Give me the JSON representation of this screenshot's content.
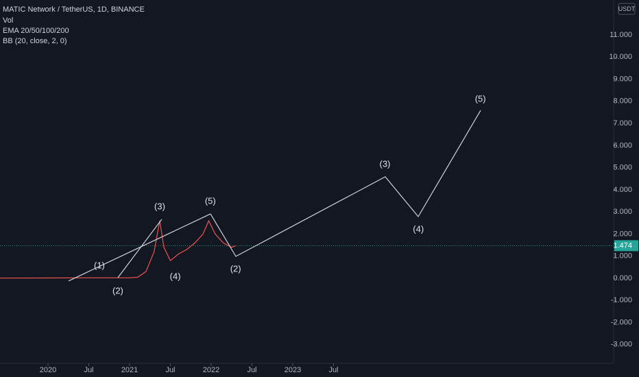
{
  "chart_data": {
    "type": "line",
    "title": "MATIC Network / TetherUS, 1D, BINANCE",
    "indicators": [
      "Vol",
      "EMA 20/50/100/200",
      "BB (20, close, 2, 0)"
    ],
    "y_unit": "USDT",
    "current_price": {
      "value": 1.474,
      "label": "1.474"
    },
    "xlim": [
      2019.412,
      2026.933
    ],
    "ylim": [
      -3.843,
      12.581
    ],
    "xticks": [
      {
        "value": 2020.0,
        "label": "2020"
      },
      {
        "value": 2020.5,
        "label": "Jul"
      },
      {
        "value": 2021.0,
        "label": "2021"
      },
      {
        "value": 2021.5,
        "label": "Jul"
      },
      {
        "value": 2022.0,
        "label": "2022"
      },
      {
        "value": 2022.5,
        "label": "Jul"
      },
      {
        "value": 2023.0,
        "label": "2023"
      },
      {
        "value": 2023.5,
        "label": "Jul"
      }
    ],
    "yticks": [
      {
        "value": -3,
        "label": "-3.000"
      },
      {
        "value": -2,
        "label": "-2.000"
      },
      {
        "value": -1,
        "label": "-1.000"
      },
      {
        "value": 0,
        "label": "0.000"
      },
      {
        "value": 1,
        "label": "1.000"
      },
      {
        "value": 2,
        "label": "2.000"
      },
      {
        "value": 3,
        "label": "3.000"
      },
      {
        "value": 4,
        "label": "4.000"
      },
      {
        "value": 5,
        "label": "5.000"
      },
      {
        "value": 6,
        "label": "6.000"
      },
      {
        "value": 7,
        "label": "7.000"
      },
      {
        "value": 8,
        "label": "8.000"
      },
      {
        "value": 9,
        "label": "9.000"
      },
      {
        "value": 10,
        "label": "10.000"
      },
      {
        "value": 11,
        "label": "11.000"
      }
    ],
    "series": [
      {
        "color": "#ef5350",
        "x": [
          2019.412,
          2020.0,
          2020.5,
          2021.0,
          2021.1,
          2021.2,
          2021.3,
          2021.37,
          2021.42,
          2021.5,
          2021.6,
          2021.7,
          2021.8,
          2021.9,
          2021.97,
          2022.05,
          2022.15,
          2022.25,
          2022.3
        ],
        "values": [
          0.01,
          0.015,
          0.02,
          0.02,
          0.05,
          0.3,
          1.2,
          2.6,
          1.4,
          0.8,
          1.1,
          1.3,
          1.6,
          2.0,
          2.6,
          2.0,
          1.6,
          1.4,
          1.47
        ]
      },
      {
        "color": "#d1d4dc",
        "x": [
          2020.252,
          2021.992
        ],
        "values": [
          -0.12,
          2.91
        ]
      },
      {
        "color": "#d1d4dc",
        "x": [
          2020.857,
          2021.395
        ],
        "values": [
          0.03,
          2.67
        ]
      },
      {
        "color": "#d1d4dc",
        "x": [
          2021.992,
          2022.303,
          2024.134,
          2024.538,
          2025.303
        ],
        "values": [
          2.91,
          0.99,
          4.59,
          2.79,
          7.59
        ]
      }
    ],
    "annotations": [
      {
        "text": "(1)",
        "x": 2020.63,
        "y": 0.56
      },
      {
        "text": "(2)",
        "x": 2020.857,
        "y": -0.59
      },
      {
        "text": "(3)",
        "x": 2021.37,
        "y": 3.22
      },
      {
        "text": "(4)",
        "x": 2021.56,
        "y": 0.06
      },
      {
        "text": "(5)",
        "x": 2021.99,
        "y": 3.47
      },
      {
        "text": "(2)",
        "x": 2022.3,
        "y": 0.4
      },
      {
        "text": "(3)",
        "x": 2024.13,
        "y": 5.14
      },
      {
        "text": "(4)",
        "x": 2024.54,
        "y": 2.2
      },
      {
        "text": "(5)",
        "x": 2025.3,
        "y": 8.09
      }
    ]
  }
}
